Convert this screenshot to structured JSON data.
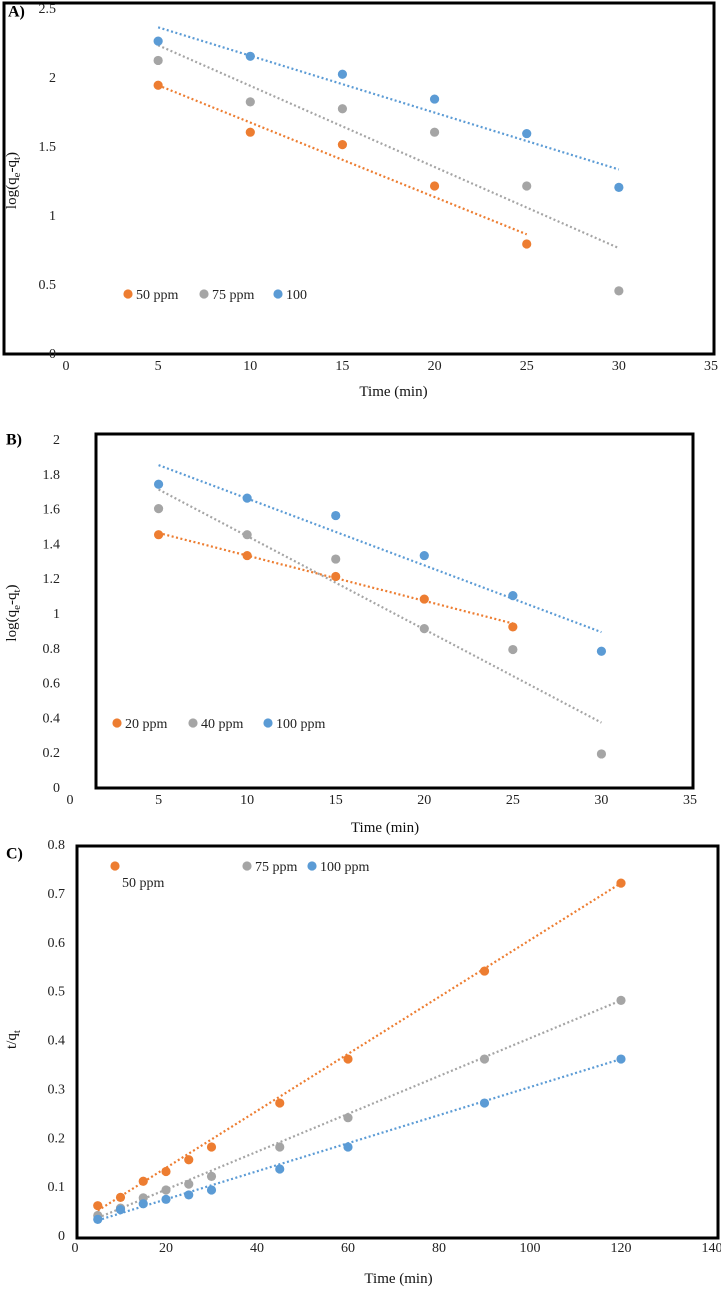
{
  "chart_data": [
    {
      "panel": "A)",
      "type": "scatter",
      "xlabel": "Time (min)",
      "ylabel": "log(q",
      "ylabel_sub1": "e",
      "ylabel_mid": "-q",
      "ylabel_sub2": "t",
      "ylabel_end": ")",
      "xlim": [
        0,
        35
      ],
      "ylim": [
        0,
        2.5
      ],
      "xticks": [
        "0",
        "5",
        "10",
        "15",
        "20",
        "25",
        "30",
        "35"
      ],
      "yticks": [
        "0",
        "0.5",
        "1",
        "1.5",
        "2",
        "2.5"
      ],
      "xtick_values": [
        0,
        5,
        10,
        15,
        20,
        25,
        30,
        35
      ],
      "ytick_values": [
        0,
        0.5,
        1,
        1.5,
        2,
        2.5
      ],
      "series": [
        {
          "name": "50 ppm",
          "color": "#ED7D31",
          "x": [
            5,
            10,
            15,
            20,
            25
          ],
          "y": [
            1.94,
            1.6,
            1.51,
            1.21,
            0.79
          ],
          "trend": [
            [
              5,
              1.94
            ],
            [
              25,
              0.86
            ]
          ]
        },
        {
          "name": "75 ppm",
          "color": "#A5A5A5",
          "x": [
            5,
            10,
            15,
            20,
            25,
            30
          ],
          "y": [
            2.12,
            1.82,
            1.77,
            1.6,
            1.21,
            0.45
          ],
          "trend": [
            [
              5,
              2.23
            ],
            [
              30,
              0.76
            ]
          ]
        },
        {
          "name": "100",
          "color": "#5B9BD5",
          "x": [
            5,
            10,
            15,
            20,
            25,
            30
          ],
          "y": [
            2.26,
            2.15,
            2.02,
            1.84,
            1.59,
            1.2
          ],
          "trend": [
            [
              5,
              2.36
            ],
            [
              30,
              1.33
            ]
          ]
        }
      ]
    },
    {
      "panel": "B)",
      "type": "scatter",
      "xlabel": "Time (min)",
      "ylabel": "log(q",
      "ylabel_sub1": "e",
      "ylabel_mid": "-q",
      "ylabel_sub2": "t",
      "ylabel_end": ")",
      "xlim": [
        0,
        35
      ],
      "ylim": [
        0,
        2
      ],
      "xticks": [
        "0",
        "5",
        "10",
        "15",
        "20",
        "25",
        "30",
        "35"
      ],
      "yticks": [
        "0",
        "0.2",
        "0.4",
        "0.6",
        "0.8",
        "1",
        "1.2",
        "1.4",
        "1.6",
        "1.8",
        "2"
      ],
      "xtick_values": [
        0,
        5,
        10,
        15,
        20,
        25,
        30,
        35
      ],
      "ytick_values": [
        0,
        0.2,
        0.4,
        0.6,
        0.8,
        1,
        1.2,
        1.4,
        1.6,
        1.8,
        2
      ],
      "series": [
        {
          "name": "20 ppm",
          "color": "#ED7D31",
          "x": [
            5,
            10,
            15,
            20,
            25
          ],
          "y": [
            1.45,
            1.33,
            1.21,
            1.08,
            0.92
          ],
          "trend": [
            [
              5,
              1.46
            ],
            [
              25,
              0.94
            ]
          ]
        },
        {
          "name": "40 ppm",
          "color": "#A5A5A5",
          "x": [
            5,
            10,
            15,
            20,
            25,
            30
          ],
          "y": [
            1.6,
            1.45,
            1.31,
            0.91,
            0.79,
            0.19
          ],
          "trend": [
            [
              5,
              1.71
            ],
            [
              30,
              0.37
            ]
          ]
        },
        {
          "name": "100 ppm",
          "color": "#5B9BD5",
          "x": [
            5,
            10,
            15,
            20,
            25,
            30
          ],
          "y": [
            1.74,
            1.66,
            1.56,
            1.33,
            1.1,
            0.78
          ],
          "trend": [
            [
              5,
              1.85
            ],
            [
              30,
              0.89
            ]
          ]
        }
      ]
    },
    {
      "panel": "C)",
      "type": "scatter",
      "xlabel": "Time (min)",
      "ylabel": "t/q",
      "ylabel_sub1": "t",
      "ylabel_mid": "",
      "ylabel_sub2": "",
      "ylabel_end": "",
      "xlim": [
        0,
        140
      ],
      "ylim": [
        0,
        0.8
      ],
      "xticks": [
        "0",
        "20",
        "40",
        "60",
        "80",
        "100",
        "120",
        "140"
      ],
      "yticks": [
        "0",
        "0.1",
        "0.2",
        "0.3",
        "0.4",
        "0.5",
        "0.6",
        "0.7",
        "0.8"
      ],
      "xtick_values": [
        0,
        20,
        40,
        60,
        80,
        100,
        120,
        140
      ],
      "ytick_values": [
        0,
        0.1,
        0.2,
        0.3,
        0.4,
        0.5,
        0.6,
        0.7,
        0.8
      ],
      "series": [
        {
          "name": "50 ppm",
          "color": "#ED7D31",
          "x": [
            5,
            10,
            15,
            20,
            25,
            30,
            45,
            60,
            90,
            120
          ],
          "y": [
            0.06,
            0.077,
            0.11,
            0.13,
            0.154,
            0.18,
            0.27,
            0.36,
            0.54,
            0.72
          ],
          "trend": [
            [
              5,
              0.05
            ],
            [
              120,
              0.72
            ]
          ]
        },
        {
          "name": "75 ppm",
          "color": "#A5A5A5",
          "x": [
            5,
            10,
            15,
            20,
            25,
            30,
            45,
            60,
            90,
            120
          ],
          "y": [
            0.04,
            0.055,
            0.076,
            0.092,
            0.104,
            0.12,
            0.18,
            0.24,
            0.36,
            0.48
          ],
          "trend": [
            [
              5,
              0.035
            ],
            [
              120,
              0.48
            ]
          ]
        },
        {
          "name": "100 ppm",
          "color": "#5B9BD5",
          "x": [
            5,
            10,
            15,
            20,
            25,
            30,
            45,
            60,
            90,
            120
          ],
          "y": [
            0.032,
            0.052,
            0.064,
            0.073,
            0.082,
            0.092,
            0.135,
            0.18,
            0.27,
            0.36
          ],
          "trend": [
            [
              5,
              0.03
            ],
            [
              120,
              0.36
            ]
          ]
        }
      ]
    }
  ]
}
